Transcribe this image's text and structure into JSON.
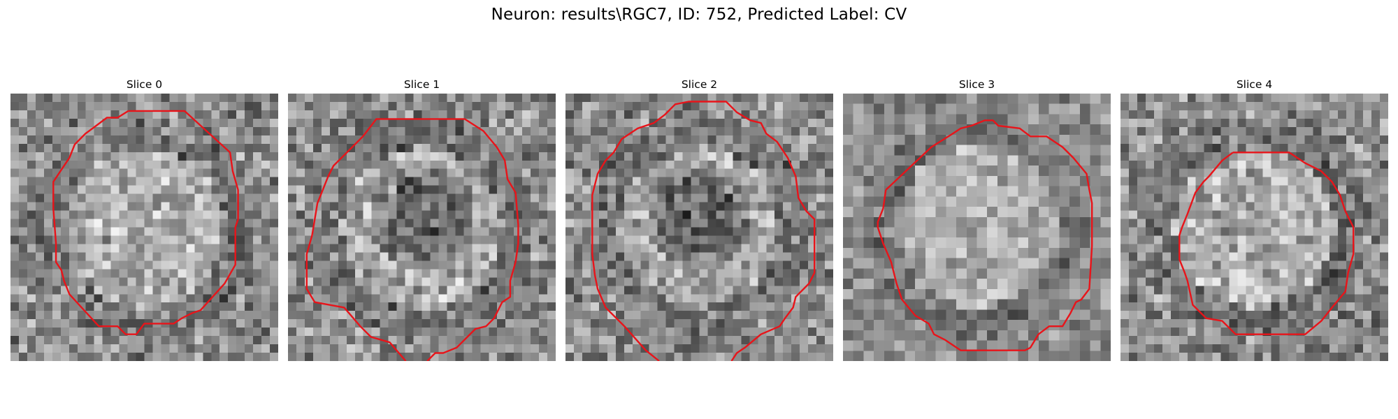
{
  "figure": {
    "title": "Neuron: results\\RGC7, ID: 752, Predicted Label: CV"
  },
  "panels": [
    {
      "title": "Slice 0",
      "seed": 11,
      "style": "fine",
      "contour": [
        [
          0.44,
          0.065
        ],
        [
          0.65,
          0.065
        ],
        [
          0.82,
          0.22
        ],
        [
          0.83,
          0.29
        ],
        [
          0.85,
          0.36
        ],
        [
          0.85,
          0.47
        ],
        [
          0.84,
          0.5
        ],
        [
          0.84,
          0.64
        ],
        [
          0.8,
          0.71
        ],
        [
          0.71,
          0.81
        ],
        [
          0.68,
          0.82
        ],
        [
          0.64,
          0.84
        ],
        [
          0.61,
          0.86
        ],
        [
          0.5,
          0.86
        ],
        [
          0.47,
          0.9
        ],
        [
          0.43,
          0.9
        ],
        [
          0.4,
          0.87
        ],
        [
          0.33,
          0.87
        ],
        [
          0.22,
          0.75
        ],
        [
          0.2,
          0.7
        ],
        [
          0.19,
          0.66
        ],
        [
          0.17,
          0.63
        ],
        [
          0.17,
          0.56
        ],
        [
          0.16,
          0.43
        ],
        [
          0.16,
          0.33
        ],
        [
          0.18,
          0.3
        ],
        [
          0.2,
          0.27
        ],
        [
          0.22,
          0.24
        ],
        [
          0.24,
          0.19
        ],
        [
          0.28,
          0.15
        ],
        [
          0.32,
          0.12
        ],
        [
          0.36,
          0.09
        ],
        [
          0.4,
          0.09
        ],
        [
          0.44,
          0.065
        ]
      ]
    },
    {
      "title": "Slice 1",
      "seed": 23,
      "style": "dark-center",
      "contour": [
        [
          0.44,
          1.0
        ],
        [
          0.38,
          0.93
        ],
        [
          0.31,
          0.91
        ],
        [
          0.27,
          0.87
        ],
        [
          0.21,
          0.8
        ],
        [
          0.1,
          0.78
        ],
        [
          0.07,
          0.73
        ],
        [
          0.07,
          0.6
        ],
        [
          0.09,
          0.53
        ],
        [
          0.1,
          0.47
        ],
        [
          0.11,
          0.41
        ],
        [
          0.13,
          0.36
        ],
        [
          0.15,
          0.31
        ],
        [
          0.17,
          0.27
        ],
        [
          0.22,
          0.22
        ],
        [
          0.28,
          0.16
        ],
        [
          0.33,
          0.095
        ],
        [
          0.66,
          0.095
        ],
        [
          0.73,
          0.14
        ],
        [
          0.78,
          0.2
        ],
        [
          0.81,
          0.25
        ],
        [
          0.82,
          0.32
        ],
        [
          0.85,
          0.37
        ],
        [
          0.86,
          0.49
        ],
        [
          0.86,
          0.56
        ],
        [
          0.85,
          0.63
        ],
        [
          0.83,
          0.7
        ],
        [
          0.83,
          0.76
        ],
        [
          0.8,
          0.78
        ],
        [
          0.77,
          0.84
        ],
        [
          0.74,
          0.87
        ],
        [
          0.7,
          0.88
        ],
        [
          0.67,
          0.91
        ],
        [
          0.63,
          0.95
        ],
        [
          0.58,
          0.97
        ],
        [
          0.55,
          0.97
        ],
        [
          0.52,
          1.0
        ]
      ]
    },
    {
      "title": "Slice 2",
      "seed": 37,
      "style": "dark-center",
      "contour": [
        [
          0.35,
          1.0
        ],
        [
          0.3,
          0.96
        ],
        [
          0.22,
          0.87
        ],
        [
          0.15,
          0.8
        ],
        [
          0.12,
          0.73
        ],
        [
          0.11,
          0.68
        ],
        [
          0.1,
          0.6
        ],
        [
          0.1,
          0.38
        ],
        [
          0.12,
          0.3
        ],
        [
          0.15,
          0.25
        ],
        [
          0.18,
          0.22
        ],
        [
          0.21,
          0.17
        ],
        [
          0.27,
          0.13
        ],
        [
          0.33,
          0.11
        ],
        [
          0.37,
          0.08
        ],
        [
          0.41,
          0.04
        ],
        [
          0.46,
          0.03
        ],
        [
          0.6,
          0.03
        ],
        [
          0.64,
          0.07
        ],
        [
          0.69,
          0.1
        ],
        [
          0.73,
          0.11
        ],
        [
          0.75,
          0.15
        ],
        [
          0.79,
          0.18
        ],
        [
          0.83,
          0.24
        ],
        [
          0.86,
          0.31
        ],
        [
          0.87,
          0.39
        ],
        [
          0.9,
          0.44
        ],
        [
          0.93,
          0.47
        ],
        [
          0.93,
          0.6
        ],
        [
          0.93,
          0.67
        ],
        [
          0.91,
          0.71
        ],
        [
          0.86,
          0.76
        ],
        [
          0.85,
          0.8
        ],
        [
          0.82,
          0.84
        ],
        [
          0.8,
          0.87
        ],
        [
          0.73,
          0.9
        ],
        [
          0.67,
          0.95
        ],
        [
          0.64,
          0.97
        ],
        [
          0.62,
          1.0
        ]
      ]
    },
    {
      "title": "Slice 3",
      "seed": 49,
      "style": "coarse",
      "contour": [
        [
          0.16,
          0.36
        ],
        [
          0.33,
          0.2
        ],
        [
          0.41,
          0.15
        ],
        [
          0.44,
          0.13
        ],
        [
          0.48,
          0.12
        ],
        [
          0.53,
          0.1
        ],
        [
          0.56,
          0.1
        ],
        [
          0.58,
          0.12
        ],
        [
          0.66,
          0.13
        ],
        [
          0.7,
          0.16
        ],
        [
          0.76,
          0.16
        ],
        [
          0.82,
          0.2
        ],
        [
          0.86,
          0.24
        ],
        [
          0.91,
          0.3
        ],
        [
          0.92,
          0.36
        ],
        [
          0.93,
          0.41
        ],
        [
          0.93,
          0.57
        ],
        [
          0.92,
          0.73
        ],
        [
          0.89,
          0.77
        ],
        [
          0.87,
          0.78
        ],
        [
          0.85,
          0.82
        ],
        [
          0.82,
          0.87
        ],
        [
          0.77,
          0.87
        ],
        [
          0.73,
          0.9
        ],
        [
          0.7,
          0.95
        ],
        [
          0.68,
          0.96
        ],
        [
          0.44,
          0.96
        ],
        [
          0.38,
          0.92
        ],
        [
          0.34,
          0.9
        ],
        [
          0.32,
          0.86
        ],
        [
          0.27,
          0.83
        ],
        [
          0.22,
          0.77
        ],
        [
          0.2,
          0.71
        ],
        [
          0.18,
          0.63
        ],
        [
          0.15,
          0.56
        ],
        [
          0.13,
          0.5
        ],
        [
          0.13,
          0.48
        ],
        [
          0.15,
          0.43
        ],
        [
          0.16,
          0.36
        ]
      ]
    },
    {
      "title": "Slice 4",
      "seed": 61,
      "style": "fine",
      "contour": [
        [
          0.42,
          0.22
        ],
        [
          0.63,
          0.22
        ],
        [
          0.69,
          0.26
        ],
        [
          0.75,
          0.29
        ],
        [
          0.79,
          0.33
        ],
        [
          0.82,
          0.38
        ],
        [
          0.84,
          0.44
        ],
        [
          0.87,
          0.5
        ],
        [
          0.87,
          0.6
        ],
        [
          0.85,
          0.67
        ],
        [
          0.84,
          0.74
        ],
        [
          0.79,
          0.8
        ],
        [
          0.75,
          0.85
        ],
        [
          0.69,
          0.9
        ],
        [
          0.43,
          0.9
        ],
        [
          0.38,
          0.85
        ],
        [
          0.32,
          0.84
        ],
        [
          0.27,
          0.79
        ],
        [
          0.25,
          0.7
        ],
        [
          0.24,
          0.67
        ],
        [
          0.22,
          0.62
        ],
        [
          0.22,
          0.53
        ],
        [
          0.23,
          0.5
        ],
        [
          0.25,
          0.45
        ],
        [
          0.28,
          0.37
        ],
        [
          0.31,
          0.33
        ],
        [
          0.33,
          0.31
        ],
        [
          0.38,
          0.25
        ],
        [
          0.42,
          0.22
        ]
      ]
    }
  ],
  "colors": {
    "contour": "#e8141a"
  }
}
